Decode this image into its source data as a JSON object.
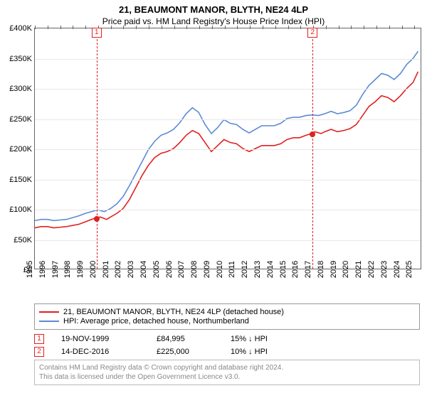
{
  "header": {
    "title": "21, BEAUMONT MANOR, BLYTH, NE24 4LP",
    "subtitle": "Price paid vs. HM Land Registry's House Price Index (HPI)"
  },
  "chart": {
    "type": "line",
    "background_color": "#ffffff",
    "grid_color": "#e8e8e8",
    "axis_color": "#666666",
    "y": {
      "min": 0,
      "max": 400000,
      "step": 50000,
      "tick_labels": [
        "£0",
        "£50K",
        "£100K",
        "£150K",
        "£200K",
        "£250K",
        "£300K",
        "£350K",
        "£400K"
      ],
      "tick_fontsize": 11
    },
    "x": {
      "min": 1995,
      "max": 2025.6,
      "step": 1,
      "tick_labels": [
        "1995",
        "1996",
        "1997",
        "1998",
        "1999",
        "2000",
        "2001",
        "2002",
        "2003",
        "2004",
        "2005",
        "2006",
        "2007",
        "2008",
        "2009",
        "2010",
        "2011",
        "2012",
        "2013",
        "2014",
        "2015",
        "2016",
        "2017",
        "2018",
        "2019",
        "2020",
        "2021",
        "2022",
        "2023",
        "2024",
        "2025"
      ],
      "tick_fontsize": 11
    },
    "series": [
      {
        "id": "price_paid",
        "label": "21, BEAUMONT MANOR, BLYTH, NE24 4LP (detached house)",
        "color": "#e02020",
        "line_width": 1.6,
        "points": [
          [
            1995,
            68000
          ],
          [
            1995.5,
            70000
          ],
          [
            1996,
            70000
          ],
          [
            1996.5,
            68000
          ],
          [
            1997,
            69000
          ],
          [
            1997.5,
            70000
          ],
          [
            1998,
            72000
          ],
          [
            1998.5,
            74000
          ],
          [
            1999,
            78000
          ],
          [
            1999.5,
            82000
          ],
          [
            1999.88,
            84995
          ],
          [
            2000.2,
            86000
          ],
          [
            2000.7,
            82000
          ],
          [
            2001,
            86000
          ],
          [
            2001.5,
            92000
          ],
          [
            2002,
            100000
          ],
          [
            2002.5,
            115000
          ],
          [
            2003,
            135000
          ],
          [
            2003.5,
            155000
          ],
          [
            2004,
            172000
          ],
          [
            2004.5,
            185000
          ],
          [
            2005,
            192000
          ],
          [
            2005.5,
            195000
          ],
          [
            2006,
            200000
          ],
          [
            2006.5,
            210000
          ],
          [
            2007,
            222000
          ],
          [
            2007.5,
            230000
          ],
          [
            2008,
            225000
          ],
          [
            2008.5,
            210000
          ],
          [
            2009,
            195000
          ],
          [
            2009.5,
            205000
          ],
          [
            2010,
            215000
          ],
          [
            2010.5,
            210000
          ],
          [
            2011,
            208000
          ],
          [
            2011.5,
            200000
          ],
          [
            2012,
            195000
          ],
          [
            2012.5,
            200000
          ],
          [
            2013,
            205000
          ],
          [
            2013.5,
            205000
          ],
          [
            2014,
            205000
          ],
          [
            2014.5,
            208000
          ],
          [
            2015,
            215000
          ],
          [
            2015.5,
            218000
          ],
          [
            2016,
            218000
          ],
          [
            2016.5,
            222000
          ],
          [
            2016.95,
            225000
          ],
          [
            2017.2,
            228000
          ],
          [
            2017.7,
            225000
          ],
          [
            2018,
            228000
          ],
          [
            2018.5,
            232000
          ],
          [
            2019,
            228000
          ],
          [
            2019.5,
            230000
          ],
          [
            2020,
            233000
          ],
          [
            2020.5,
            240000
          ],
          [
            2021,
            255000
          ],
          [
            2021.5,
            270000
          ],
          [
            2022,
            278000
          ],
          [
            2022.5,
            288000
          ],
          [
            2023,
            285000
          ],
          [
            2023.5,
            278000
          ],
          [
            2024,
            288000
          ],
          [
            2024.5,
            300000
          ],
          [
            2025,
            310000
          ],
          [
            2025.4,
            328000
          ]
        ]
      },
      {
        "id": "hpi",
        "label": "HPI: Average price, detached house, Northumberland",
        "color": "#5b8bd4",
        "line_width": 1.6,
        "points": [
          [
            1995,
            80000
          ],
          [
            1995.5,
            82000
          ],
          [
            1996,
            82000
          ],
          [
            1996.5,
            80000
          ],
          [
            1997,
            81000
          ],
          [
            1997.5,
            82000
          ],
          [
            1998,
            85000
          ],
          [
            1998.5,
            88000
          ],
          [
            1999,
            92000
          ],
          [
            1999.5,
            95000
          ],
          [
            2000,
            98000
          ],
          [
            2000.5,
            95000
          ],
          [
            2001,
            100000
          ],
          [
            2001.5,
            108000
          ],
          [
            2002,
            120000
          ],
          [
            2002.5,
            138000
          ],
          [
            2003,
            158000
          ],
          [
            2003.5,
            178000
          ],
          [
            2004,
            198000
          ],
          [
            2004.5,
            212000
          ],
          [
            2005,
            222000
          ],
          [
            2005.5,
            226000
          ],
          [
            2006,
            232000
          ],
          [
            2006.5,
            243000
          ],
          [
            2007,
            258000
          ],
          [
            2007.5,
            268000
          ],
          [
            2008,
            260000
          ],
          [
            2008.5,
            240000
          ],
          [
            2009,
            225000
          ],
          [
            2009.5,
            235000
          ],
          [
            2010,
            248000
          ],
          [
            2010.5,
            242000
          ],
          [
            2011,
            240000
          ],
          [
            2011.5,
            232000
          ],
          [
            2012,
            226000
          ],
          [
            2012.5,
            232000
          ],
          [
            2013,
            238000
          ],
          [
            2013.5,
            238000
          ],
          [
            2014,
            238000
          ],
          [
            2014.5,
            242000
          ],
          [
            2015,
            250000
          ],
          [
            2015.5,
            252000
          ],
          [
            2016,
            252000
          ],
          [
            2016.5,
            255000
          ],
          [
            2017,
            256000
          ],
          [
            2017.5,
            255000
          ],
          [
            2018,
            258000
          ],
          [
            2018.5,
            262000
          ],
          [
            2019,
            258000
          ],
          [
            2019.5,
            260000
          ],
          [
            2020,
            263000
          ],
          [
            2020.5,
            272000
          ],
          [
            2021,
            290000
          ],
          [
            2021.5,
            305000
          ],
          [
            2022,
            315000
          ],
          [
            2022.5,
            325000
          ],
          [
            2023,
            322000
          ],
          [
            2023.5,
            315000
          ],
          [
            2024,
            325000
          ],
          [
            2024.5,
            340000
          ],
          [
            2025,
            350000
          ],
          [
            2025.4,
            362000
          ]
        ]
      }
    ],
    "markers": [
      {
        "badge": "1",
        "x": 1999.88,
        "y": 84995,
        "badge_y": 393000
      },
      {
        "badge": "2",
        "x": 2016.95,
        "y": 225000,
        "badge_y": 393000
      }
    ]
  },
  "legend": {
    "border_color": "#999999",
    "fontsize": 11
  },
  "events": [
    {
      "badge": "1",
      "date": "19-NOV-1999",
      "price": "£84,995",
      "diff": "15% ↓ HPI"
    },
    {
      "badge": "2",
      "date": "14-DEC-2016",
      "price": "£225,000",
      "diff": "10% ↓ HPI"
    }
  ],
  "attribution": {
    "line1": "Contains HM Land Registry data © Crown copyright and database right 2024.",
    "line2": "This data is licensed under the Open Government Licence v3.0.",
    "border_color": "#bbbbbb",
    "text_color": "#888888"
  }
}
